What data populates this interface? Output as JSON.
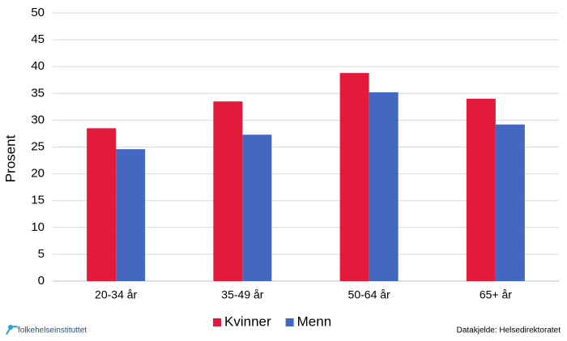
{
  "chart_data": {
    "type": "bar",
    "y_label": "Prosent",
    "categories": [
      "20-34 år",
      "35-49 år",
      "50-64 år",
      "65+ år"
    ],
    "series": [
      {
        "name": "Kvinner",
        "color": "#e31b3a",
        "values": [
          28.5,
          33.5,
          38.8,
          34.0
        ]
      },
      {
        "name": "Menn",
        "color": "#4468c0",
        "values": [
          24.6,
          27.3,
          35.2,
          29.2
        ]
      }
    ],
    "ylim": [
      0,
      50
    ],
    "yticks": [
      0,
      5,
      10,
      15,
      20,
      25,
      30,
      35,
      40,
      45,
      50
    ],
    "grid": true,
    "legend": "bottom",
    "logo_text": "folkehelseinstituttet",
    "source": "Datakjelde: Helsedirektoratet"
  }
}
